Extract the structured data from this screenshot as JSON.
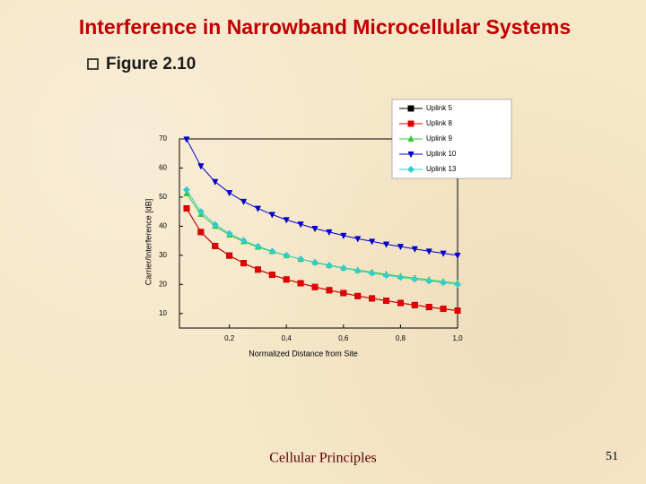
{
  "slide": {
    "title": "Interference in Narrowband Microcellular Systems",
    "figure_label": "Figure 2.10",
    "footer": "Cellular Principles",
    "page_number": "51"
  },
  "chart_data": {
    "type": "line",
    "x_label": "Normalized Distance from Site",
    "y_label": "Carrier/Interference [dB]",
    "x": [
      0.05,
      0.1,
      0.15,
      0.2,
      0.25,
      0.3,
      0.35,
      0.4,
      0.45,
      0.5,
      0.55,
      0.6,
      0.65,
      0.7,
      0.75,
      0.8,
      0.85,
      0.9,
      0.95,
      1.0
    ],
    "series": [
      {
        "name": "Uplink 5",
        "color": "#000000",
        "marker": "square",
        "values": [
          46.1,
          38,
          33.2,
          29.9,
          27.3,
          25.1,
          23.3,
          21.7,
          20.4,
          19.1,
          18,
          17,
          16,
          15.2,
          14.4,
          13.6,
          12.9,
          12.2,
          11.6,
          11
        ]
      },
      {
        "name": "Uplink 8",
        "color": "#e00000",
        "marker": "circle-square",
        "values": [
          46.1,
          38,
          33.2,
          29.9,
          27.3,
          25.1,
          23.3,
          21.7,
          20.4,
          19.1,
          18,
          17,
          16,
          15.2,
          14.4,
          13.6,
          12.9,
          12.2,
          11.6,
          11
        ]
      },
      {
        "name": "Uplink 9",
        "color": "#33cc33",
        "marker": "triangle-up",
        "values": [
          51.2,
          44.1,
          40,
          37,
          34.7,
          32.8,
          31.3,
          29.9,
          28.7,
          27.6,
          26.6,
          25.7,
          24.9,
          24.2,
          23.5,
          22.8,
          22.2,
          21.6,
          21,
          20.5
        ]
      },
      {
        "name": "Uplink 10",
        "color": "#0000cc",
        "marker": "triangle-down",
        "values": [
          69.9,
          60.7,
          55.3,
          51.5,
          48.5,
          46.1,
          44,
          42.2,
          40.7,
          39.2,
          38,
          36.8,
          35.7,
          34.8,
          33.8,
          33,
          32.2,
          31.4,
          30.7,
          30
        ]
      },
      {
        "name": "Uplink 13",
        "color": "#33cccc",
        "marker": "diamond",
        "values": [
          52.5,
          45,
          40.6,
          37.5,
          35.1,
          33.1,
          31.4,
          30,
          28.7,
          27.5,
          26.5,
          25.6,
          24.7,
          23.9,
          23.1,
          22.4,
          21.8,
          21.2,
          20.6,
          20
        ]
      }
    ],
    "xlim": [
      0.025,
      1.0
    ],
    "ylim": [
      5,
      70
    ],
    "xticks": [
      {
        "value": 0.2,
        "label": "0,2"
      },
      {
        "value": 0.4,
        "label": "0,4"
      },
      {
        "value": 0.6,
        "label": "0,6"
      },
      {
        "value": 0.8,
        "label": "0,8"
      },
      {
        "value": 1.0,
        "label": "1,0"
      }
    ],
    "yticks": [
      10,
      20,
      30,
      40,
      50,
      60,
      70
    ],
    "legend": "top-right"
  }
}
